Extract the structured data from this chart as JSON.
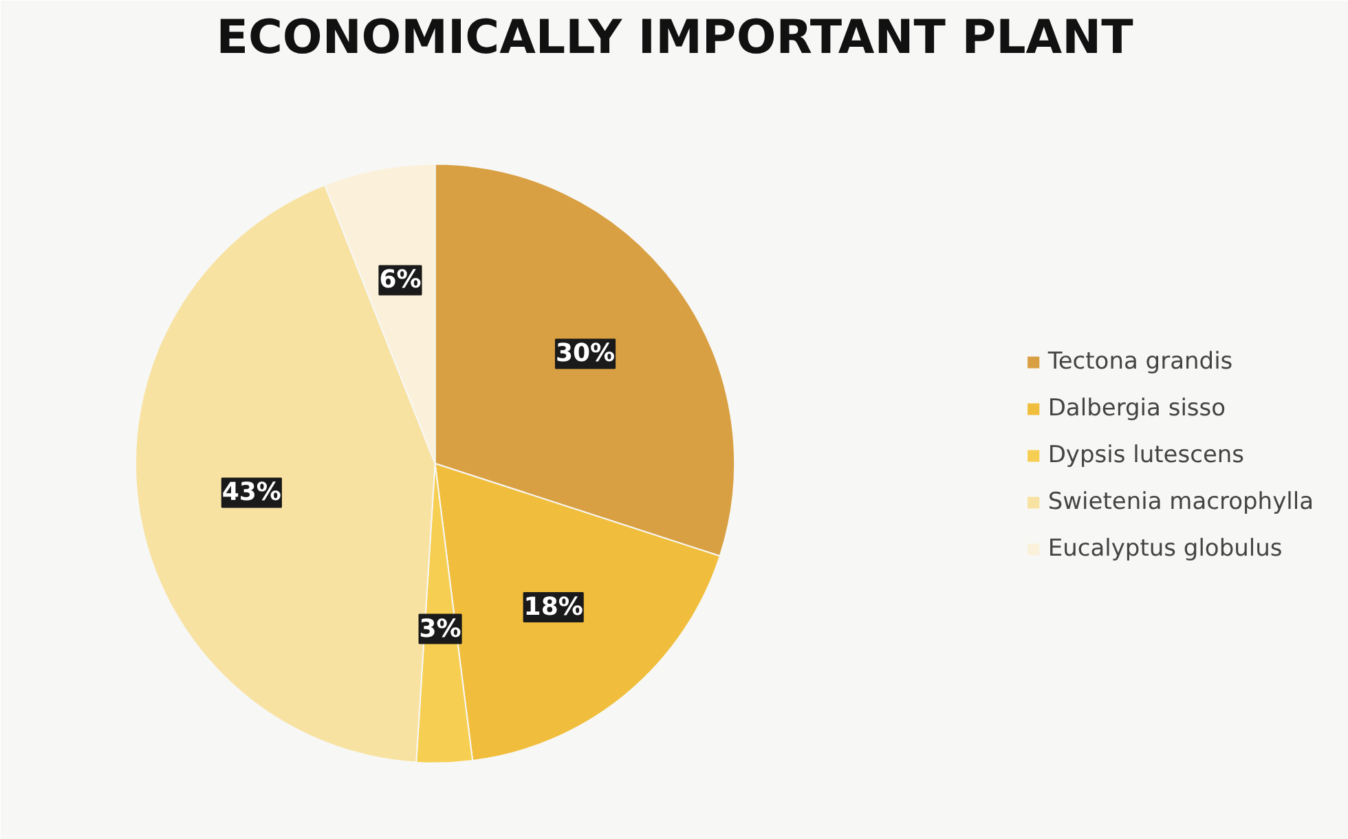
{
  "chart_data": {
    "type": "pie",
    "title": "ECONOMICALLY IMPORTANT PLANT",
    "categories": [
      "Tectona grandis",
      "Dalbergia sisso",
      "Dypsis lutescens",
      "Swietenia macrophylla",
      "Eucalyptus globulus"
    ],
    "values": [
      30,
      18,
      3,
      43,
      6
    ],
    "colors": [
      "#d9a043",
      "#f0be3c",
      "#f6cf52",
      "#f8e2a2",
      "#fbf1da"
    ],
    "value_labels": [
      "30%",
      "18%",
      "3%",
      "43%",
      "6%"
    ],
    "legend": "right"
  }
}
